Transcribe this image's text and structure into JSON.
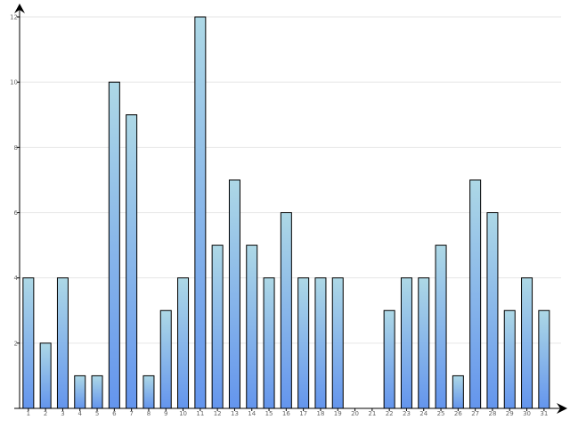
{
  "chart_data": {
    "type": "bar",
    "title": "",
    "xlabel": "",
    "ylabel": "",
    "categories": [
      "1",
      "2",
      "3",
      "4",
      "5",
      "6",
      "7",
      "8",
      "9",
      "10",
      "11",
      "12",
      "13",
      "14",
      "15",
      "16",
      "17",
      "18",
      "19",
      "20",
      "21",
      "22",
      "23",
      "24",
      "25",
      "26",
      "27",
      "28",
      "29",
      "30",
      "31"
    ],
    "values": [
      4,
      2,
      4,
      1,
      1,
      10,
      9,
      1,
      3,
      4,
      12,
      5,
      7,
      5,
      4,
      6,
      4,
      4,
      4,
      0,
      0,
      3,
      4,
      4,
      5,
      1,
      7,
      6,
      3,
      4,
      3
    ],
    "ylim": [
      0,
      12
    ],
    "y_ticks": [
      {
        "value": 2,
        "label": "2"
      },
      {
        "value": 4,
        "label": "4"
      },
      {
        "value": 6,
        "label": "6"
      },
      {
        "value": 8,
        "label": "8"
      },
      {
        "value": 10,
        "label": "10"
      },
      {
        "value": 12,
        "label": "12"
      }
    ],
    "grid": true,
    "legend": "none",
    "colors": {
      "bar_top": "#add8e6",
      "bar_bottom": "#6495ed",
      "bar_stroke": "#000000",
      "grid": "#e6e6e6",
      "axis": "#000000"
    }
  }
}
